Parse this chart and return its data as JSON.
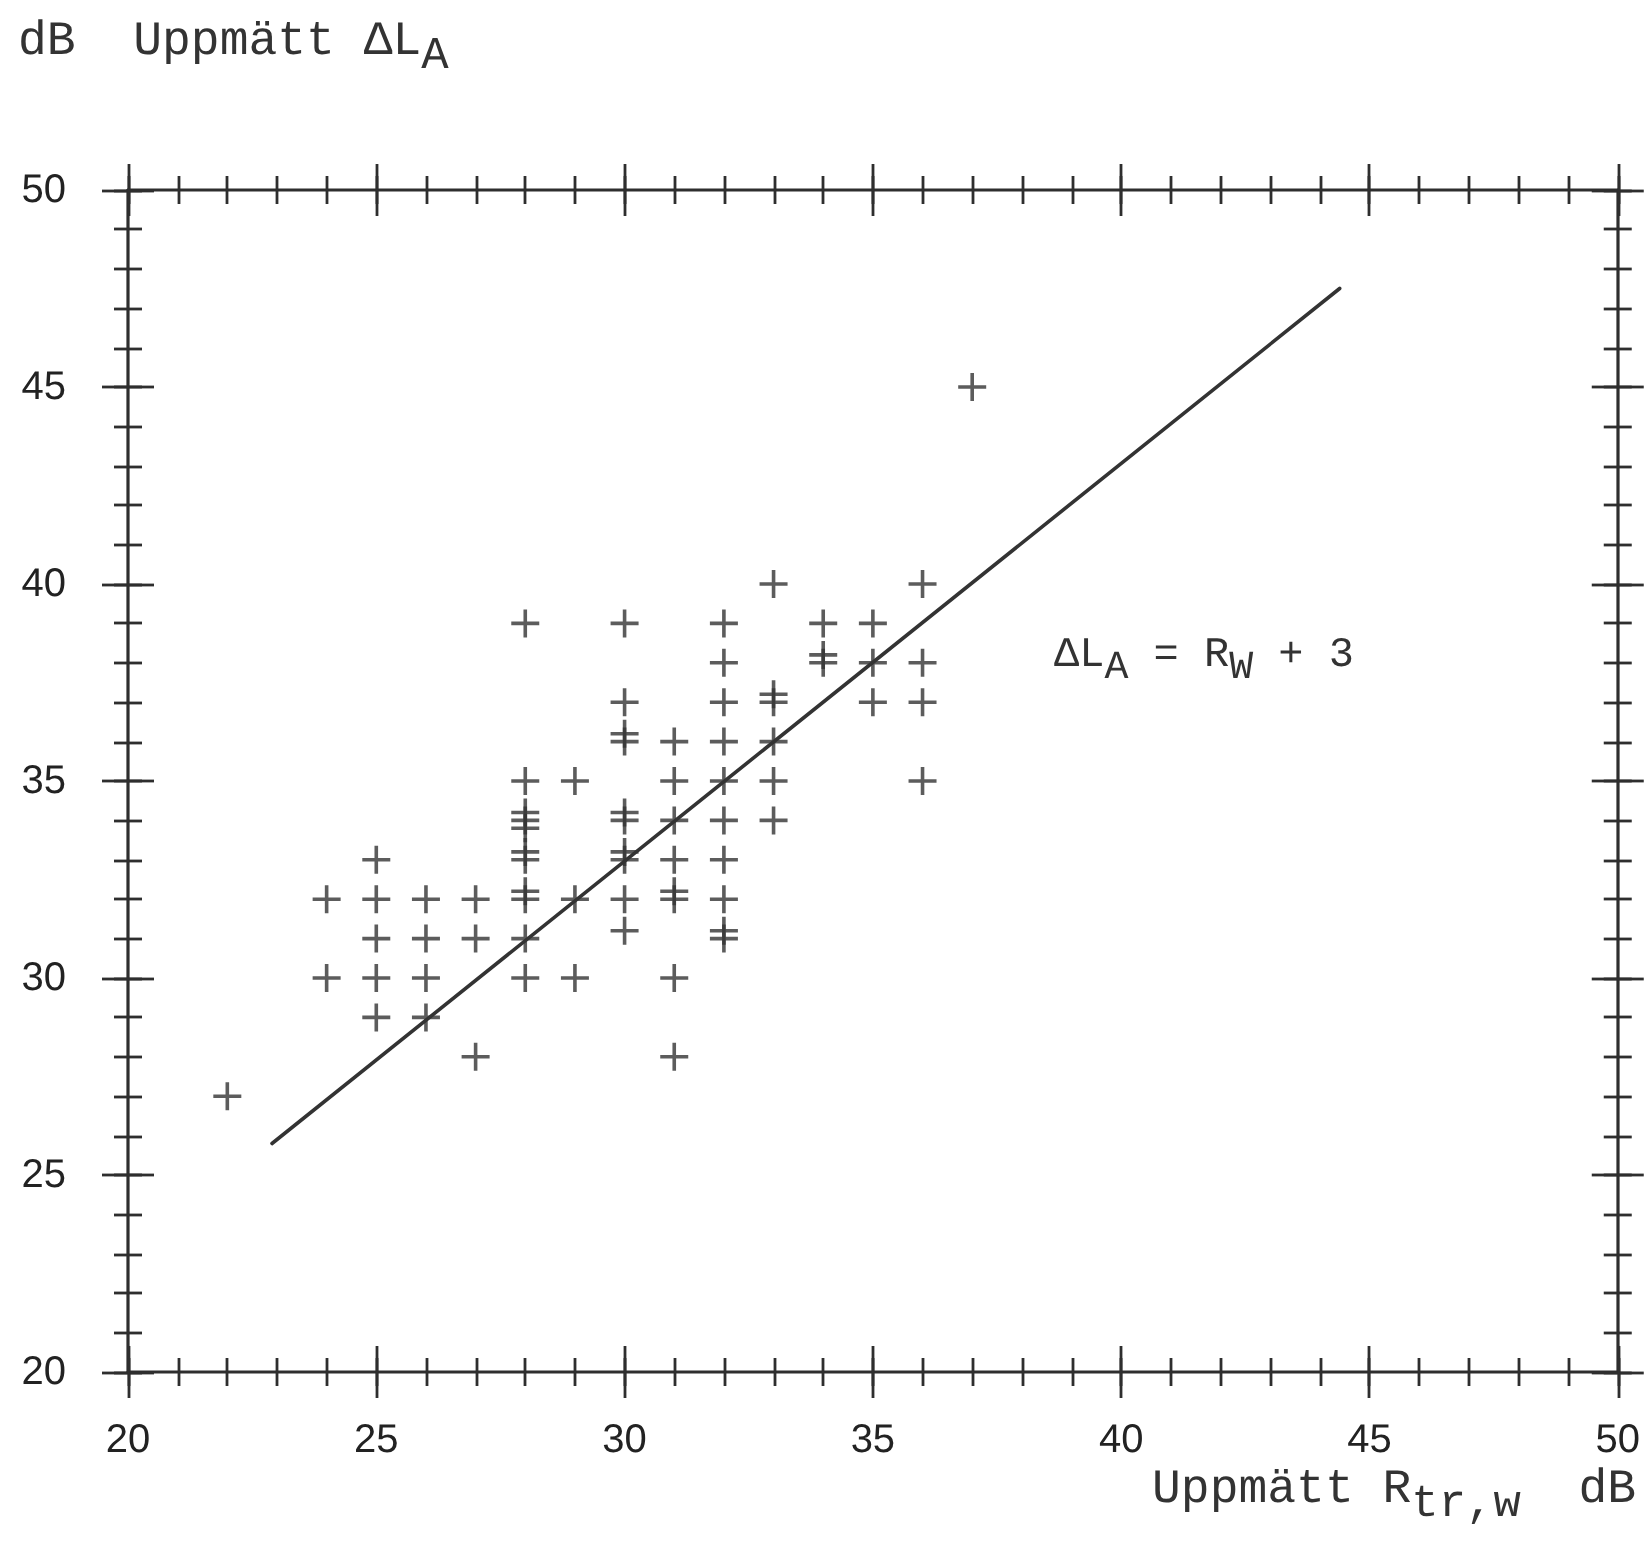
{
  "chart_data": {
    "type": "scatter",
    "xlabel": "Uppmätt R$_{tr,w}$  dB",
    "ylabel": "dB  Uppmätt ΔL$_{A}$",
    "annotations": [
      "ΔL$_{A}$ = R$_{W}$ + 3"
    ],
    "marker": "cross",
    "grid": false,
    "xlim": [
      20,
      50
    ],
    "ylim": [
      20,
      50
    ],
    "xticks": [
      20,
      {
        "value": 21,
        "label": null
      },
      {
        "value": 22,
        "label": null
      },
      {
        "value": 23,
        "label": null
      },
      {
        "value": 24,
        "label": null
      },
      25,
      {
        "value": 26,
        "label": null
      },
      {
        "value": 27,
        "label": null
      },
      {
        "value": 28,
        "label": null
      },
      {
        "value": 29,
        "label": null
      },
      30,
      {
        "value": 31,
        "label": null
      },
      {
        "value": 32,
        "label": null
      },
      {
        "value": 33,
        "label": null
      },
      {
        "value": 34,
        "label": null
      },
      35,
      {
        "value": 36,
        "label": null
      },
      {
        "value": 37,
        "label": null
      },
      {
        "value": 38,
        "label": null
      },
      {
        "value": 39,
        "label": null
      },
      40,
      {
        "value": 41,
        "label": null
      },
      {
        "value": 42,
        "label": null
      },
      {
        "value": 43,
        "label": null
      },
      {
        "value": 44,
        "label": null
      },
      45,
      {
        "value": 46,
        "label": null
      },
      {
        "value": 47,
        "label": null
      },
      {
        "value": 48,
        "label": null
      },
      {
        "value": 49,
        "label": null
      },
      50
    ],
    "yticks": [
      20,
      {
        "value": 21,
        "label": null
      },
      {
        "value": 22,
        "label": null
      },
      {
        "value": 23,
        "label": null
      },
      {
        "value": 24,
        "label": null
      },
      25,
      {
        "value": 26,
        "label": null
      },
      {
        "value": 27,
        "label": null
      },
      {
        "value": 28,
        "label": null
      },
      {
        "value": 29,
        "label": null
      },
      30,
      {
        "value": 31,
        "label": null
      },
      {
        "value": 32,
        "label": null
      },
      {
        "value": 33,
        "label": null
      },
      {
        "value": 34,
        "label": null
      },
      35,
      {
        "value": 36,
        "label": null
      },
      {
        "value": 37,
        "label": null
      },
      {
        "value": 38,
        "label": null
      },
      {
        "value": 39,
        "label": null
      },
      40,
      {
        "value": 41,
        "label": null
      },
      {
        "value": 42,
        "label": null
      },
      {
        "value": 43,
        "label": null
      },
      {
        "value": 44,
        "label": null
      },
      45,
      {
        "value": 46,
        "label": null
      },
      {
        "value": 47,
        "label": null
      },
      {
        "value": 48,
        "label": null
      },
      {
        "value": 49,
        "label": null
      },
      50
    ],
    "series": [
      {
        "color": "#333333",
        "x": [
          22,
          24,
          24,
          25,
          25,
          25,
          25,
          25,
          26,
          26,
          26,
          26,
          27,
          27,
          27,
          28,
          28,
          28,
          28,
          28,
          28,
          28,
          28,
          28,
          28,
          28,
          29,
          29,
          29,
          30,
          30,
          30,
          30,
          30,
          30,
          30,
          30,
          30,
          30,
          31,
          31,
          31,
          31,
          31,
          31,
          31,
          31,
          32,
          32,
          32,
          32,
          32,
          32,
          32,
          32,
          32,
          32,
          33,
          33,
          33,
          33,
          33,
          33,
          34,
          34,
          34,
          35,
          35,
          35,
          36,
          36,
          36,
          36,
          37
        ],
        "values": [
          27,
          32,
          30,
          33,
          32,
          31,
          30,
          29,
          32,
          31,
          30,
          29,
          32,
          31,
          28,
          39,
          35,
          34.2,
          34,
          33.8,
          33.2,
          33,
          32.2,
          32,
          31,
          30,
          35,
          32,
          30,
          39,
          37,
          36.2,
          36,
          34.2,
          34,
          33.2,
          33,
          32,
          31.2,
          36,
          35,
          34,
          33,
          32.2,
          32,
          30,
          28,
          39,
          38,
          37,
          36,
          35,
          34,
          33,
          32,
          31.2,
          31,
          40,
          37.2,
          37,
          36,
          35,
          34,
          39,
          38.2,
          38,
          39,
          38,
          37,
          40,
          38,
          37,
          35,
          45
        ]
      },
      {
        "type": "line",
        "color": "#333333",
        "marker": "none",
        "line_style": "solid",
        "x": [
          22.9,
          44.4
        ],
        "values": [
          25.8,
          47.5
        ]
      }
    ]
  }
}
